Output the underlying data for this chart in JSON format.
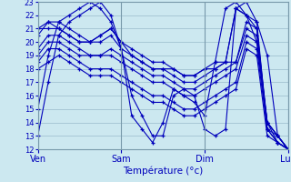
{
  "xlabel": "Température (°c)",
  "bg_color": "#cce8f0",
  "grid_color": "#99bbcc",
  "line_color": "#0000bb",
  "ylim": [
    12,
    23
  ],
  "yticks": [
    12,
    13,
    14,
    15,
    16,
    17,
    18,
    19,
    20,
    21,
    22,
    23
  ],
  "xtick_labels": [
    "Ven",
    "Sam",
    "Dim",
    "Lun"
  ],
  "xtick_positions": [
    0,
    8,
    16,
    24
  ],
  "series": [
    [
      15.0,
      19.0,
      21.5,
      22.0,
      22.5,
      23.0,
      22.5,
      21.5,
      19.5,
      16.0,
      14.5,
      13.0,
      13.0,
      16.0,
      16.5,
      16.0,
      13.5,
      13.0,
      13.5,
      22.5,
      23.0,
      21.5,
      19.0,
      13.0,
      12.0
    ],
    [
      13.0,
      17.0,
      20.5,
      21.5,
      22.0,
      22.5,
      23.0,
      22.0,
      19.5,
      14.5,
      13.5,
      12.5,
      14.0,
      16.5,
      16.0,
      15.5,
      14.5,
      18.5,
      22.5,
      23.0,
      22.0,
      20.0,
      14.0,
      12.5,
      12.0
    ],
    [
      20.5,
      21.5,
      21.0,
      20.5,
      20.0,
      20.0,
      20.5,
      21.0,
      20.0,
      19.0,
      18.5,
      18.0,
      18.0,
      18.0,
      17.5,
      17.5,
      18.0,
      18.0,
      18.5,
      22.5,
      22.0,
      21.5,
      13.5,
      12.5,
      12.0
    ],
    [
      21.0,
      21.5,
      21.5,
      21.0,
      20.5,
      20.0,
      20.5,
      21.0,
      20.0,
      19.5,
      19.0,
      18.5,
      18.5,
      18.0,
      17.5,
      17.5,
      18.0,
      18.5,
      18.5,
      22.5,
      22.0,
      21.0,
      13.5,
      13.0,
      12.0
    ],
    [
      21.0,
      21.0,
      21.0,
      20.5,
      20.0,
      20.0,
      20.0,
      20.5,
      19.5,
      19.0,
      18.5,
      18.0,
      18.0,
      17.5,
      17.0,
      17.0,
      17.5,
      18.0,
      18.5,
      18.5,
      21.5,
      21.0,
      14.0,
      13.0,
      12.0
    ],
    [
      19.5,
      20.5,
      20.5,
      20.0,
      19.5,
      19.0,
      19.0,
      19.5,
      19.0,
      18.5,
      18.0,
      17.5,
      17.5,
      17.0,
      16.5,
      16.5,
      17.0,
      17.5,
      18.0,
      18.5,
      21.0,
      20.5,
      14.0,
      13.0,
      12.0
    ],
    [
      19.0,
      20.0,
      20.0,
      19.5,
      19.0,
      19.0,
      19.0,
      19.0,
      18.5,
      18.0,
      17.5,
      17.0,
      17.0,
      16.5,
      16.0,
      16.0,
      16.5,
      17.0,
      17.5,
      18.0,
      20.5,
      20.0,
      14.0,
      13.0,
      12.0
    ],
    [
      18.5,
      19.5,
      19.5,
      19.0,
      18.5,
      18.0,
      18.0,
      18.0,
      17.5,
      17.0,
      16.5,
      16.0,
      16.0,
      15.5,
      15.0,
      15.0,
      15.5,
      16.0,
      16.5,
      17.0,
      20.0,
      19.5,
      13.5,
      12.5,
      12.0
    ],
    [
      18.0,
      18.5,
      19.0,
      18.5,
      18.0,
      17.5,
      17.5,
      17.5,
      17.0,
      16.5,
      16.0,
      15.5,
      15.5,
      15.0,
      14.5,
      14.5,
      15.0,
      15.5,
      16.0,
      16.5,
      19.5,
      19.0,
      13.0,
      12.5,
      12.0
    ]
  ]
}
